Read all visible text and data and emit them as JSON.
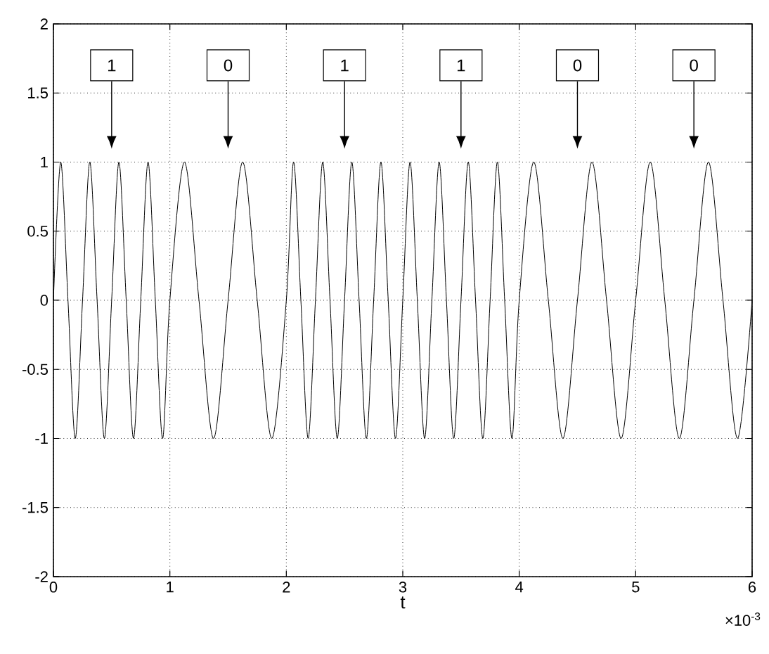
{
  "chart_data": {
    "type": "line",
    "xlabel": "t",
    "x": [
      0,
      0.0625,
      0.125,
      0.1875,
      0.25,
      0.3125,
      0.375,
      0.4375,
      0.5,
      0.5625,
      0.625,
      0.6875,
      0.75,
      0.8125,
      0.875,
      0.9375,
      1,
      1.125,
      1.25,
      1.375,
      1.5,
      1.625,
      1.75,
      1.875,
      2,
      2.0625,
      2.125,
      2.1875,
      2.25,
      2.3125,
      2.375,
      2.4375,
      2.5,
      2.5625,
      2.625,
      2.6875,
      2.75,
      2.8125,
      2.875,
      2.9375,
      3,
      3.0625,
      3.125,
      3.1875,
      3.25,
      3.3125,
      3.375,
      3.4375,
      3.5,
      3.5625,
      3.625,
      3.6875,
      3.75,
      3.8125,
      3.875,
      3.9375,
      4,
      4.125,
      4.25,
      4.375,
      4.5,
      4.625,
      4.75,
      4.875,
      5,
      5.125,
      5.25,
      5.375,
      5.5,
      5.625,
      5.75,
      5.875,
      6
    ],
    "series": [
      {
        "color": "#000000",
        "values": [
          0,
          1,
          0,
          -1,
          0,
          1,
          0,
          -1,
          0,
          1,
          0,
          -1,
          0,
          1,
          0,
          -1,
          0,
          1,
          0,
          -1,
          0,
          1,
          0,
          -1,
          0,
          1,
          0,
          -1,
          0,
          1,
          0,
          -1,
          0,
          1,
          0,
          -1,
          0,
          1,
          0,
          -1,
          0,
          1,
          0,
          -1,
          0,
          1,
          0,
          -1,
          0,
          1,
          0,
          -1,
          0,
          1,
          0,
          -1,
          0,
          1,
          0,
          -1,
          0,
          1,
          0,
          -1,
          0,
          1,
          0,
          -1,
          0,
          1,
          0,
          -1,
          0
        ]
      }
    ],
    "xlim": [
      0,
      6
    ],
    "ylim": [
      -2,
      2
    ],
    "xticks": [
      0,
      1,
      2,
      3,
      4,
      5,
      6
    ],
    "yticks": [
      -2,
      -1.5,
      -1,
      -0.5,
      0,
      0.5,
      1,
      1.5,
      2
    ],
    "grid": true,
    "annotations": [
      {
        "text": "1",
        "x": 0.5,
        "y": 1.7
      },
      {
        "text": "0",
        "x": 1.5,
        "y": 1.7
      },
      {
        "text": "1",
        "x": 2.5,
        "y": 1.7
      },
      {
        "text": "1",
        "x": 3.5,
        "y": 1.7
      },
      {
        "text": "0",
        "x": 4.5,
        "y": 1.7
      },
      {
        "text": "0",
        "x": 5.5,
        "y": 1.7
      },
      "×10$^{-3}$"
    ]
  }
}
